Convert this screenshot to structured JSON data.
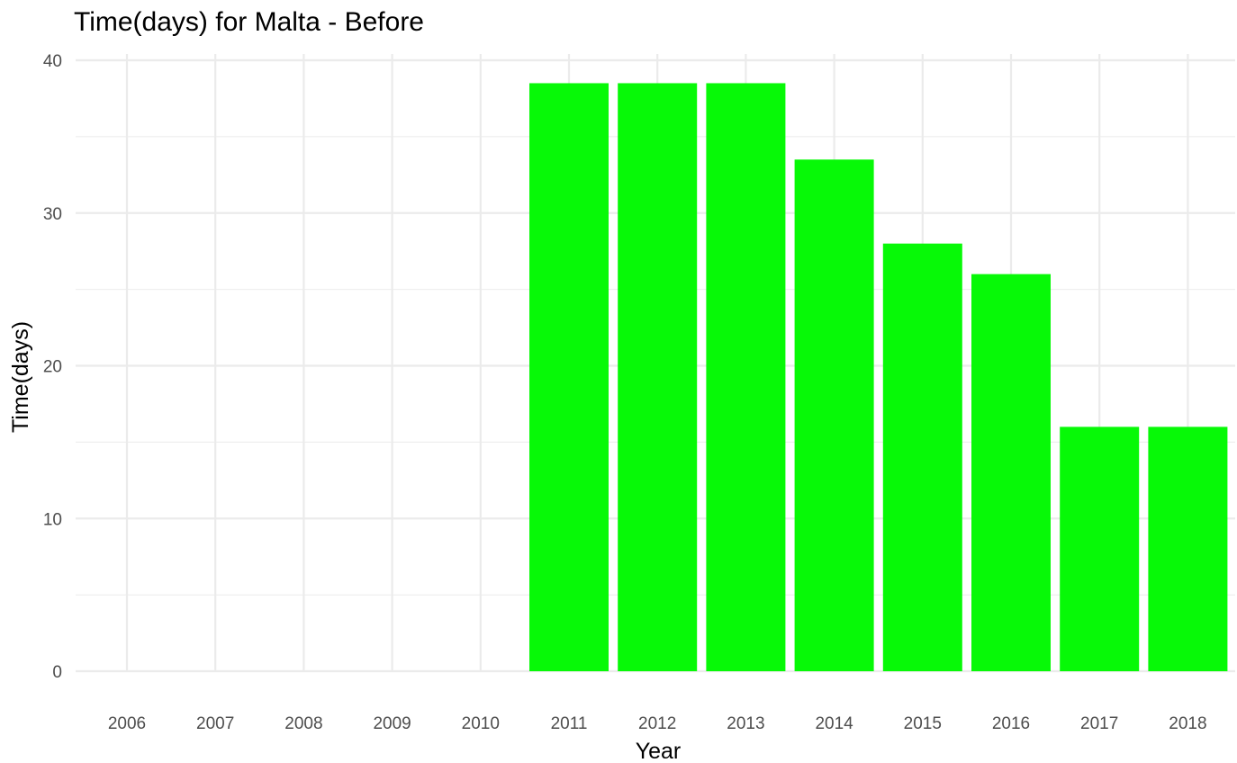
{
  "chart_data": {
    "type": "bar",
    "title": "Time(days) for Malta - Before",
    "xlabel": "Year",
    "ylabel": "Time(days)",
    "categories": [
      "2006",
      "2007",
      "2008",
      "2009",
      "2010",
      "2011",
      "2012",
      "2013",
      "2014",
      "2015",
      "2016",
      "2017",
      "2018"
    ],
    "values": [
      null,
      null,
      null,
      null,
      null,
      38.5,
      38.5,
      38.5,
      33.5,
      28,
      26,
      16,
      16
    ],
    "ylim": [
      0,
      40
    ],
    "yticks": [
      0,
      10,
      20,
      30,
      40
    ],
    "bar_color": "#07f907",
    "grid_color": "#ebebeb",
    "grid": true,
    "legend": "none"
  }
}
